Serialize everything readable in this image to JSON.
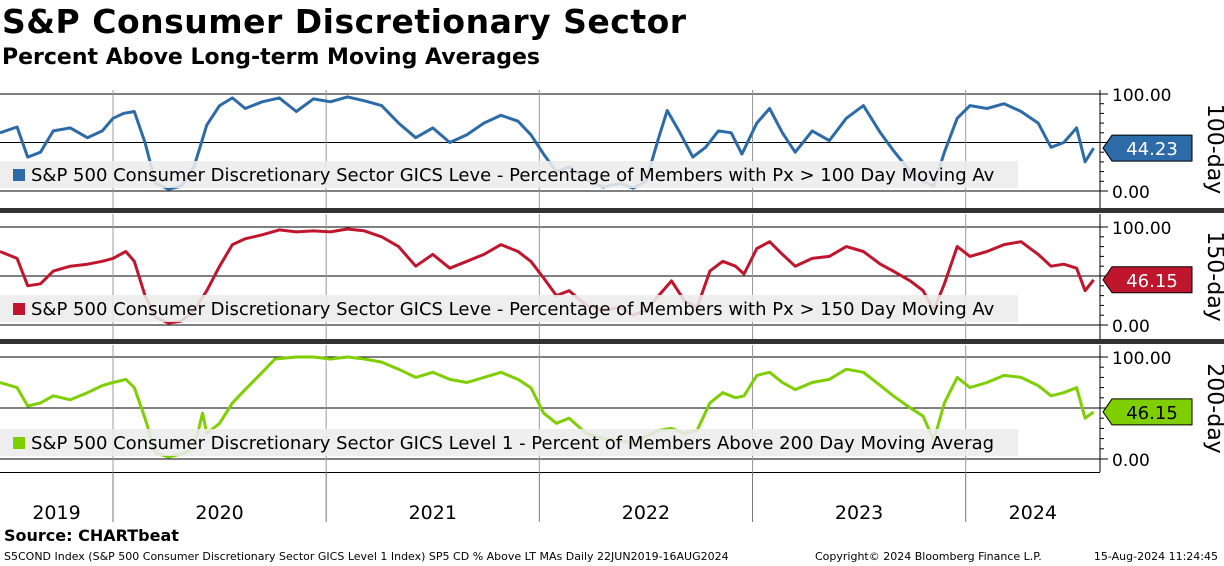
{
  "title": "S&P Consumer Discretionary Sector",
  "subtitle": "Percent Above Long-term Moving Averages",
  "source": "Source: CHARTbeat",
  "footer": {
    "left": "S5COND Index (S&P 500 Consumer Discretionary Sector GICS Level 1 Index) SP5 CD % Above LT MAs  Daily 22JUN2019-16AUG2024",
    "copyright": "Copyright© 2024 Bloomberg Finance L.P.",
    "date": "15-Aug-2024 11:24:45"
  },
  "colors": {
    "blue": "#2d6aa8",
    "red": "#c0162d",
    "green": "#7fce00"
  },
  "chart_data": {
    "type": "line",
    "x_tick_labels": [
      "2019",
      "2020",
      "2021",
      "2022",
      "2023",
      "2024"
    ],
    "x_range": [
      2019.47,
      2024.63
    ],
    "panels": [
      {
        "side_label": "100-day",
        "legend": "S&P 500 Consumer Discretionary Sector GICS Leve - Percentage of Members with Px > 100 Day Moving Av",
        "last_value_label": "44.23",
        "ylim": [
          0,
          100
        ],
        "y_tick_labels": [
          "100.00",
          "0.00"
        ],
        "color": "#2d6aa8",
        "series": [
          {
            "x": 2019.47,
            "y": 60
          },
          {
            "x": 2019.55,
            "y": 66
          },
          {
            "x": 2019.6,
            "y": 35
          },
          {
            "x": 2019.66,
            "y": 40
          },
          {
            "x": 2019.72,
            "y": 62
          },
          {
            "x": 2019.8,
            "y": 65
          },
          {
            "x": 2019.88,
            "y": 55
          },
          {
            "x": 2019.95,
            "y": 62
          },
          {
            "x": 2020.0,
            "y": 75
          },
          {
            "x": 2020.05,
            "y": 80
          },
          {
            "x": 2020.1,
            "y": 82
          },
          {
            "x": 2020.15,
            "y": 50
          },
          {
            "x": 2020.2,
            "y": 8
          },
          {
            "x": 2020.26,
            "y": 2
          },
          {
            "x": 2020.32,
            "y": 5
          },
          {
            "x": 2020.38,
            "y": 25
          },
          {
            "x": 2020.44,
            "y": 68
          },
          {
            "x": 2020.5,
            "y": 88
          },
          {
            "x": 2020.56,
            "y": 96
          },
          {
            "x": 2020.62,
            "y": 85
          },
          {
            "x": 2020.7,
            "y": 92
          },
          {
            "x": 2020.78,
            "y": 96
          },
          {
            "x": 2020.86,
            "y": 82
          },
          {
            "x": 2020.94,
            "y": 95
          },
          {
            "x": 2021.02,
            "y": 92
          },
          {
            "x": 2021.1,
            "y": 97
          },
          {
            "x": 2021.18,
            "y": 93
          },
          {
            "x": 2021.26,
            "y": 88
          },
          {
            "x": 2021.34,
            "y": 70
          },
          {
            "x": 2021.42,
            "y": 55
          },
          {
            "x": 2021.5,
            "y": 65
          },
          {
            "x": 2021.58,
            "y": 50
          },
          {
            "x": 2021.66,
            "y": 58
          },
          {
            "x": 2021.74,
            "y": 70
          },
          {
            "x": 2021.82,
            "y": 78
          },
          {
            "x": 2021.9,
            "y": 72
          },
          {
            "x": 2021.96,
            "y": 58
          },
          {
            "x": 2022.02,
            "y": 38
          },
          {
            "x": 2022.08,
            "y": 20
          },
          {
            "x": 2022.14,
            "y": 25
          },
          {
            "x": 2022.22,
            "y": 12
          },
          {
            "x": 2022.3,
            "y": 4
          },
          {
            "x": 2022.38,
            "y": 8
          },
          {
            "x": 2022.44,
            "y": 3
          },
          {
            "x": 2022.5,
            "y": 10
          },
          {
            "x": 2022.56,
            "y": 55
          },
          {
            "x": 2022.6,
            "y": 83
          },
          {
            "x": 2022.66,
            "y": 60
          },
          {
            "x": 2022.72,
            "y": 35
          },
          {
            "x": 2022.78,
            "y": 45
          },
          {
            "x": 2022.84,
            "y": 62
          },
          {
            "x": 2022.9,
            "y": 60
          },
          {
            "x": 2022.95,
            "y": 38
          },
          {
            "x": 2023.02,
            "y": 70
          },
          {
            "x": 2023.08,
            "y": 85
          },
          {
            "x": 2023.14,
            "y": 60
          },
          {
            "x": 2023.2,
            "y": 40
          },
          {
            "x": 2023.28,
            "y": 62
          },
          {
            "x": 2023.36,
            "y": 52
          },
          {
            "x": 2023.44,
            "y": 75
          },
          {
            "x": 2023.52,
            "y": 88
          },
          {
            "x": 2023.6,
            "y": 60
          },
          {
            "x": 2023.66,
            "y": 42
          },
          {
            "x": 2023.74,
            "y": 20
          },
          {
            "x": 2023.8,
            "y": 10
          },
          {
            "x": 2023.85,
            "y": 5
          },
          {
            "x": 2023.9,
            "y": 40
          },
          {
            "x": 2023.96,
            "y": 75
          },
          {
            "x": 2024.02,
            "y": 88
          },
          {
            "x": 2024.1,
            "y": 85
          },
          {
            "x": 2024.18,
            "y": 90
          },
          {
            "x": 2024.26,
            "y": 82
          },
          {
            "x": 2024.34,
            "y": 70
          },
          {
            "x": 2024.4,
            "y": 45
          },
          {
            "x": 2024.46,
            "y": 50
          },
          {
            "x": 2024.52,
            "y": 65
          },
          {
            "x": 2024.56,
            "y": 30
          },
          {
            "x": 2024.6,
            "y": 44.23
          }
        ]
      },
      {
        "side_label": "150-day",
        "legend": "S&P 500 Consumer Discretionary Sector GICS Leve - Percentage of Members with Px > 150 Day Moving Av",
        "last_value_label": "46.15",
        "ylim": [
          0,
          100
        ],
        "y_tick_labels": [
          "100.00",
          "0.00"
        ],
        "color": "#c0162d",
        "series": [
          {
            "x": 2019.47,
            "y": 75
          },
          {
            "x": 2019.55,
            "y": 68
          },
          {
            "x": 2019.6,
            "y": 40
          },
          {
            "x": 2019.66,
            "y": 42
          },
          {
            "x": 2019.72,
            "y": 55
          },
          {
            "x": 2019.8,
            "y": 60
          },
          {
            "x": 2019.88,
            "y": 62
          },
          {
            "x": 2019.95,
            "y": 65
          },
          {
            "x": 2020.0,
            "y": 68
          },
          {
            "x": 2020.06,
            "y": 75
          },
          {
            "x": 2020.1,
            "y": 65
          },
          {
            "x": 2020.15,
            "y": 30
          },
          {
            "x": 2020.2,
            "y": 8
          },
          {
            "x": 2020.26,
            "y": 2
          },
          {
            "x": 2020.32,
            "y": 4
          },
          {
            "x": 2020.38,
            "y": 15
          },
          {
            "x": 2020.44,
            "y": 35
          },
          {
            "x": 2020.5,
            "y": 60
          },
          {
            "x": 2020.56,
            "y": 82
          },
          {
            "x": 2020.62,
            "y": 88
          },
          {
            "x": 2020.7,
            "y": 92
          },
          {
            "x": 2020.78,
            "y": 97
          },
          {
            "x": 2020.86,
            "y": 95
          },
          {
            "x": 2020.94,
            "y": 96
          },
          {
            "x": 2021.02,
            "y": 95
          },
          {
            "x": 2021.1,
            "y": 98
          },
          {
            "x": 2021.18,
            "y": 96
          },
          {
            "x": 2021.26,
            "y": 90
          },
          {
            "x": 2021.34,
            "y": 80
          },
          {
            "x": 2021.42,
            "y": 60
          },
          {
            "x": 2021.5,
            "y": 72
          },
          {
            "x": 2021.58,
            "y": 58
          },
          {
            "x": 2021.66,
            "y": 65
          },
          {
            "x": 2021.74,
            "y": 72
          },
          {
            "x": 2021.82,
            "y": 82
          },
          {
            "x": 2021.9,
            "y": 75
          },
          {
            "x": 2021.96,
            "y": 65
          },
          {
            "x": 2022.02,
            "y": 48
          },
          {
            "x": 2022.08,
            "y": 30
          },
          {
            "x": 2022.14,
            "y": 35
          },
          {
            "x": 2022.22,
            "y": 20
          },
          {
            "x": 2022.3,
            "y": 15
          },
          {
            "x": 2022.38,
            "y": 18
          },
          {
            "x": 2022.44,
            "y": 10
          },
          {
            "x": 2022.5,
            "y": 15
          },
          {
            "x": 2022.56,
            "y": 30
          },
          {
            "x": 2022.62,
            "y": 45
          },
          {
            "x": 2022.68,
            "y": 25
          },
          {
            "x": 2022.74,
            "y": 18
          },
          {
            "x": 2022.8,
            "y": 55
          },
          {
            "x": 2022.86,
            "y": 65
          },
          {
            "x": 2022.92,
            "y": 60
          },
          {
            "x": 2022.96,
            "y": 52
          },
          {
            "x": 2023.02,
            "y": 78
          },
          {
            "x": 2023.08,
            "y": 85
          },
          {
            "x": 2023.14,
            "y": 72
          },
          {
            "x": 2023.2,
            "y": 60
          },
          {
            "x": 2023.28,
            "y": 68
          },
          {
            "x": 2023.36,
            "y": 70
          },
          {
            "x": 2023.44,
            "y": 80
          },
          {
            "x": 2023.52,
            "y": 75
          },
          {
            "x": 2023.6,
            "y": 62
          },
          {
            "x": 2023.66,
            "y": 55
          },
          {
            "x": 2023.74,
            "y": 45
          },
          {
            "x": 2023.8,
            "y": 35
          },
          {
            "x": 2023.85,
            "y": 15
          },
          {
            "x": 2023.9,
            "y": 42
          },
          {
            "x": 2023.96,
            "y": 80
          },
          {
            "x": 2024.02,
            "y": 70
          },
          {
            "x": 2024.1,
            "y": 75
          },
          {
            "x": 2024.18,
            "y": 82
          },
          {
            "x": 2024.26,
            "y": 85
          },
          {
            "x": 2024.34,
            "y": 72
          },
          {
            "x": 2024.4,
            "y": 60
          },
          {
            "x": 2024.46,
            "y": 62
          },
          {
            "x": 2024.52,
            "y": 58
          },
          {
            "x": 2024.56,
            "y": 35
          },
          {
            "x": 2024.6,
            "y": 46.15
          }
        ]
      },
      {
        "side_label": "200-day",
        "legend": "S&P 500 Consumer Discretionary Sector GICS Level 1 - Percent of Members Above 200 Day Moving Averag",
        "last_value_label": "46.15",
        "ylim": [
          0,
          100
        ],
        "y_tick_labels": [
          "100.00",
          "0.00"
        ],
        "color": "#7fce00",
        "series": [
          {
            "x": 2019.47,
            "y": 75
          },
          {
            "x": 2019.55,
            "y": 70
          },
          {
            "x": 2019.6,
            "y": 52
          },
          {
            "x": 2019.66,
            "y": 55
          },
          {
            "x": 2019.72,
            "y": 62
          },
          {
            "x": 2019.8,
            "y": 58
          },
          {
            "x": 2019.88,
            "y": 65
          },
          {
            "x": 2019.95,
            "y": 72
          },
          {
            "x": 2020.0,
            "y": 75
          },
          {
            "x": 2020.06,
            "y": 78
          },
          {
            "x": 2020.1,
            "y": 70
          },
          {
            "x": 2020.15,
            "y": 40
          },
          {
            "x": 2020.2,
            "y": 6
          },
          {
            "x": 2020.26,
            "y": 2
          },
          {
            "x": 2020.32,
            "y": 5
          },
          {
            "x": 2020.38,
            "y": 10
          },
          {
            "x": 2020.42,
            "y": 45
          },
          {
            "x": 2020.44,
            "y": 25
          },
          {
            "x": 2020.5,
            "y": 35
          },
          {
            "x": 2020.56,
            "y": 55
          },
          {
            "x": 2020.62,
            "y": 68
          },
          {
            "x": 2020.7,
            "y": 85
          },
          {
            "x": 2020.76,
            "y": 98
          },
          {
            "x": 2020.86,
            "y": 100
          },
          {
            "x": 2020.94,
            "y": 100
          },
          {
            "x": 2021.02,
            "y": 98
          },
          {
            "x": 2021.1,
            "y": 100
          },
          {
            "x": 2021.18,
            "y": 98
          },
          {
            "x": 2021.26,
            "y": 95
          },
          {
            "x": 2021.34,
            "y": 88
          },
          {
            "x": 2021.42,
            "y": 80
          },
          {
            "x": 2021.5,
            "y": 85
          },
          {
            "x": 2021.58,
            "y": 78
          },
          {
            "x": 2021.66,
            "y": 75
          },
          {
            "x": 2021.74,
            "y": 80
          },
          {
            "x": 2021.82,
            "y": 85
          },
          {
            "x": 2021.9,
            "y": 78
          },
          {
            "x": 2021.96,
            "y": 70
          },
          {
            "x": 2022.02,
            "y": 45
          },
          {
            "x": 2022.08,
            "y": 35
          },
          {
            "x": 2022.14,
            "y": 40
          },
          {
            "x": 2022.22,
            "y": 25
          },
          {
            "x": 2022.3,
            "y": 20
          },
          {
            "x": 2022.38,
            "y": 18
          },
          {
            "x": 2022.44,
            "y": 15
          },
          {
            "x": 2022.5,
            "y": 22
          },
          {
            "x": 2022.56,
            "y": 28
          },
          {
            "x": 2022.62,
            "y": 30
          },
          {
            "x": 2022.68,
            "y": 25
          },
          {
            "x": 2022.74,
            "y": 28
          },
          {
            "x": 2022.8,
            "y": 55
          },
          {
            "x": 2022.86,
            "y": 65
          },
          {
            "x": 2022.92,
            "y": 60
          },
          {
            "x": 2022.96,
            "y": 62
          },
          {
            "x": 2023.02,
            "y": 82
          },
          {
            "x": 2023.08,
            "y": 85
          },
          {
            "x": 2023.14,
            "y": 75
          },
          {
            "x": 2023.2,
            "y": 68
          },
          {
            "x": 2023.28,
            "y": 75
          },
          {
            "x": 2023.36,
            "y": 78
          },
          {
            "x": 2023.44,
            "y": 88
          },
          {
            "x": 2023.52,
            "y": 85
          },
          {
            "x": 2023.6,
            "y": 72
          },
          {
            "x": 2023.66,
            "y": 62
          },
          {
            "x": 2023.74,
            "y": 50
          },
          {
            "x": 2023.8,
            "y": 42
          },
          {
            "x": 2023.85,
            "y": 18
          },
          {
            "x": 2023.9,
            "y": 55
          },
          {
            "x": 2023.96,
            "y": 80
          },
          {
            "x": 2024.02,
            "y": 70
          },
          {
            "x": 2024.1,
            "y": 75
          },
          {
            "x": 2024.18,
            "y": 82
          },
          {
            "x": 2024.26,
            "y": 80
          },
          {
            "x": 2024.34,
            "y": 72
          },
          {
            "x": 2024.4,
            "y": 62
          },
          {
            "x": 2024.46,
            "y": 65
          },
          {
            "x": 2024.52,
            "y": 70
          },
          {
            "x": 2024.56,
            "y": 40
          },
          {
            "x": 2024.6,
            "y": 46.15
          }
        ]
      }
    ]
  }
}
